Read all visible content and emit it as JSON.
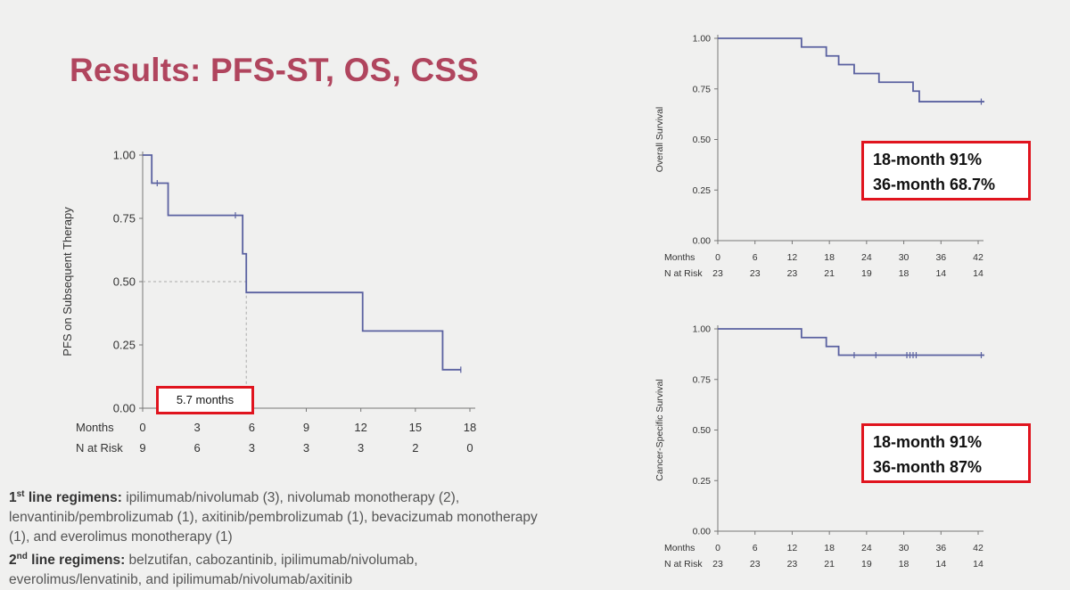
{
  "slide_title": "Results: PFS-ST, OS, CSS",
  "regimens": {
    "first": {
      "ordinal": "1",
      "sup": "st",
      "label": " line regimens:",
      "text": " ipilimumab/nivolumab (3), nivolumab monotherapy (2), lenvantinib/pembrolizumab (1), axitinib/pembrolizumab (1), bevacizumab monotherapy (1), and everolimus monotherapy (1)"
    },
    "second": {
      "ordinal": "2",
      "sup": "nd",
      "label": " line regimens:",
      "text": " belzutifan, cabozantinib, ipilimumab/nivolumab, everolimus/lenvatinib, and ipilimumab/nivolumab/axitinib"
    }
  },
  "colors": {
    "title": "#b0455e",
    "curve": "#5a61a0",
    "callout_border": "#e0141e"
  },
  "chart_data": [
    {
      "type": "line",
      "id": "pfs",
      "ylabel": "PFS on Subsequent Therapy",
      "xlim": [
        0,
        18
      ],
      "ylim": [
        0,
        1
      ],
      "x_ticks": [
        0,
        3,
        6,
        9,
        12,
        15,
        18
      ],
      "y_ticks": [
        "0.00",
        "0.25",
        "0.50",
        "0.75",
        "1.00"
      ],
      "risk_row_label": "Months",
      "risk_label": "N at Risk",
      "n_at_risk": [
        9,
        6,
        3,
        3,
        3,
        2,
        0
      ],
      "steps": [
        [
          0,
          1.0
        ],
        [
          0.5,
          0.889
        ],
        [
          1.4,
          0.762
        ],
        [
          5.5,
          0.61
        ],
        [
          5.7,
          0.457
        ],
        [
          12.1,
          0.305
        ],
        [
          16.5,
          0.152
        ],
        [
          17.5,
          0.152
        ]
      ],
      "censors": [
        [
          0.8,
          0.889
        ],
        [
          5.1,
          0.762
        ],
        [
          17.5,
          0.152
        ]
      ],
      "median": 5.7,
      "annotation": "5.7 months"
    },
    {
      "type": "line",
      "id": "os",
      "ylabel": "Overall Survival",
      "xlim": [
        0,
        42
      ],
      "ylim": [
        0,
        1
      ],
      "x_ticks": [
        0,
        6,
        12,
        18,
        24,
        30,
        36,
        42
      ],
      "y_ticks": [
        "0.00",
        "0.25",
        "0.50",
        "0.75",
        "1.00"
      ],
      "risk_row_label": "Months",
      "risk_label": "N at Risk",
      "n_at_risk": [
        23,
        23,
        23,
        21,
        19,
        18,
        14,
        14
      ],
      "steps": [
        [
          0,
          1.0
        ],
        [
          13.5,
          0.957
        ],
        [
          17.5,
          0.913
        ],
        [
          19.5,
          0.87
        ],
        [
          22,
          0.826
        ],
        [
          26,
          0.783
        ],
        [
          31.5,
          0.739
        ],
        [
          32.5,
          0.687
        ],
        [
          43,
          0.687
        ]
      ],
      "censors": [
        [
          42.5,
          0.687
        ]
      ],
      "annotation": [
        "18-month 91%",
        "36-month 68.7%"
      ]
    },
    {
      "type": "line",
      "id": "css",
      "ylabel": "Cancer-Specific Survival",
      "xlim": [
        0,
        42
      ],
      "ylim": [
        0,
        1
      ],
      "x_ticks": [
        0,
        6,
        12,
        18,
        24,
        30,
        36,
        42
      ],
      "y_ticks": [
        "0.00",
        "0.25",
        "0.50",
        "0.75",
        "1.00"
      ],
      "risk_row_label": "Months",
      "risk_label": "N at Risk",
      "n_at_risk": [
        23,
        23,
        23,
        21,
        19,
        18,
        14,
        14
      ],
      "steps": [
        [
          0,
          1.0
        ],
        [
          13.5,
          0.957
        ],
        [
          17.5,
          0.913
        ],
        [
          19.5,
          0.87
        ],
        [
          43,
          0.87
        ]
      ],
      "censors": [
        [
          22,
          0.87
        ],
        [
          25.5,
          0.87
        ],
        [
          30.5,
          0.87
        ],
        [
          31,
          0.87
        ],
        [
          31.5,
          0.87
        ],
        [
          32,
          0.87
        ],
        [
          42.5,
          0.87
        ]
      ],
      "annotation": [
        "18-month 91%",
        "36-month 87%"
      ]
    }
  ]
}
